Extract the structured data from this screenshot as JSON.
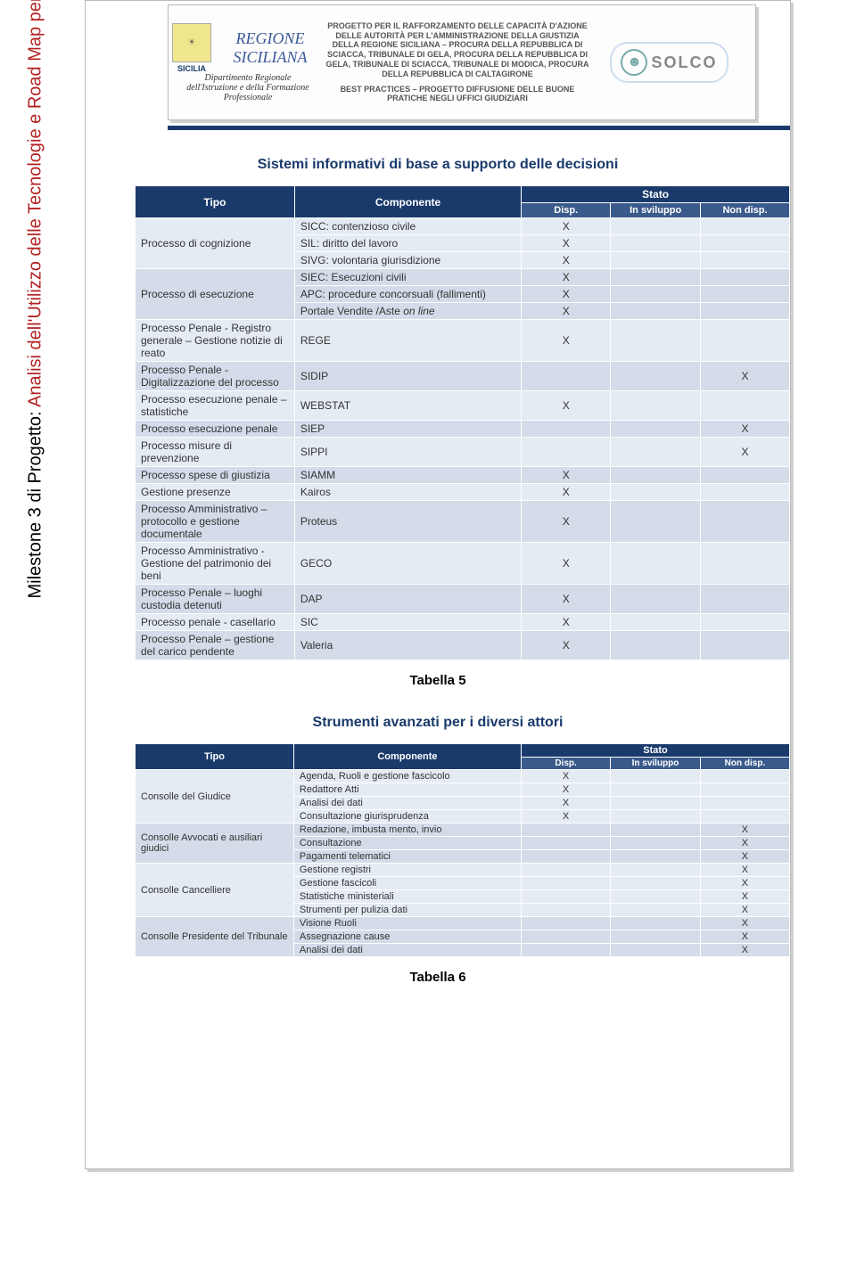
{
  "sidebar": {
    "black": "Milestone 3 di Progetto: ",
    "red": "Analisi dell'Utilizzo delle Tecnologie e Road Map per l'innovazione tecnologica"
  },
  "header": {
    "regione": "REGIONE SICILIANA",
    "sicilia": "SICILIA",
    "dept1": "Dipartimento Regionale",
    "dept2": "dell'Istruzione e della Formazione",
    "dept3": "Professionale",
    "center1": "PROGETTO PER IL RAFFORZAMENTO DELLE CAPACITÀ D'AZIONE DELLE AUTORITÀ PER L'AMMINISTRAZIONE DELLA GIUSTIZIA DELLA REGIONE SICILIANA – PROCURA DELLA REPUBBLICA DI SCIACCA, TRIBUNALE DI GELA, PROCURA DELLA REPUBBLICA DI GELA, TRIBUNALE DI SCIACCA, TRIBUNALE DI MODICA, PROCURA DELLA REPUBBLICA DI CALTAGIRONE",
    "center2": "BEST PRACTICES – PROGETTO DIFFUSIONE DELLE BUONE PRATICHE NEGLI UFFICI GIUDIZIARI",
    "solco": "SOLCO"
  },
  "titles": {
    "t1": "Sistemi informativi di base a supporto delle decisioni",
    "cap5": "Tabella 5",
    "t2": "Strumenti avanzati per i diversi attori",
    "cap6": "Tabella 6"
  },
  "headers": {
    "tipo": "Tipo",
    "componente": "Componente",
    "stato": "Stato",
    "disp": "Disp.",
    "svil": "In sviluppo",
    "nondisp": "Non disp."
  },
  "table1": {
    "colors": {
      "a": "#e4ebf3",
      "b": "#d3dce8"
    },
    "groups": [
      {
        "tipo": "Processo di cognizione",
        "shade": "a",
        "rows": [
          {
            "comp": "SICC: contenzioso civile",
            "disp": "X",
            "svil": "",
            "nd": ""
          },
          {
            "comp": "SIL: diritto del lavoro",
            "disp": "X",
            "svil": "",
            "nd": ""
          },
          {
            "comp": "SIVG: volontaria giurisdizione",
            "disp": "X",
            "svil": "",
            "nd": ""
          }
        ]
      },
      {
        "tipo": "Processo di esecuzione",
        "shade": "b",
        "rows": [
          {
            "comp": "SIEC: Esecuzioni civili",
            "disp": "X",
            "svil": "",
            "nd": ""
          },
          {
            "comp": "APC: procedure concorsuali (fallimenti)",
            "disp": "X",
            "svil": "",
            "nd": ""
          },
          {
            "comp_html": "Portale Vendite /Aste <i>on line</i>",
            "disp": "X",
            "svil": "",
            "nd": ""
          }
        ]
      },
      {
        "tipo": "Processo Penale - Registro generale – Gestione notizie di reato",
        "shade": "a",
        "rows": [
          {
            "comp": "REGE",
            "disp": "X",
            "svil": "",
            "nd": ""
          }
        ]
      },
      {
        "tipo": "Processo Penale - Digitalizzazione del processo",
        "shade": "b",
        "rows": [
          {
            "comp": "SIDIP",
            "disp": "",
            "svil": "",
            "nd": "X"
          }
        ]
      },
      {
        "tipo": "Processo esecuzione penale – statistiche",
        "shade": "a",
        "rows": [
          {
            "comp": "WEBSTAT",
            "disp": "X",
            "svil": "",
            "nd": ""
          }
        ]
      },
      {
        "tipo": "Processo esecuzione penale",
        "shade": "b",
        "rows": [
          {
            "comp": "SIEP",
            "disp": "",
            "svil": "",
            "nd": "X"
          }
        ]
      },
      {
        "tipo": "Processo misure di prevenzione",
        "shade": "a",
        "rows": [
          {
            "comp": "SIPPI",
            "disp": "",
            "svil": "",
            "nd": "X"
          }
        ]
      },
      {
        "tipo": "Processo spese di giustizia",
        "shade": "b",
        "rows": [
          {
            "comp": "SIAMM",
            "disp": "X",
            "svil": "",
            "nd": ""
          }
        ]
      },
      {
        "tipo": "Gestione presenze",
        "shade": "a",
        "rows": [
          {
            "comp": "Kairos",
            "disp": "X",
            "svil": "",
            "nd": ""
          }
        ]
      },
      {
        "tipo": "Processo Amministrativo – protocollo e gestione documentale",
        "shade": "b",
        "rows": [
          {
            "comp": "Proteus",
            "disp": "X",
            "svil": "",
            "nd": ""
          }
        ]
      },
      {
        "tipo": "Processo Amministrativo -  Gestione del patrimonio dei beni",
        "shade": "a",
        "rows": [
          {
            "comp": "GECO",
            "disp": "X",
            "svil": "",
            "nd": ""
          }
        ]
      },
      {
        "tipo": "Processo Penale – luoghi custodia detenuti",
        "shade": "b",
        "rows": [
          {
            "comp": "DAP",
            "disp": "X",
            "svil": "",
            "nd": ""
          }
        ]
      },
      {
        "tipo": "Processo penale - casellario",
        "shade": "a",
        "rows": [
          {
            "comp": "SIC",
            "disp": "X",
            "svil": "",
            "nd": ""
          }
        ]
      },
      {
        "tipo": "Processo Penale – gestione del carico pendente",
        "shade": "b",
        "rows": [
          {
            "comp": "Valeria",
            "disp": "X",
            "svil": "",
            "nd": ""
          }
        ]
      }
    ]
  },
  "table2": {
    "groups": [
      {
        "tipo": "Consolle del Giudice",
        "shade": "a",
        "rows": [
          {
            "comp": "Agenda, Ruoli e gestione fascicolo",
            "disp": "X",
            "svil": "",
            "nd": ""
          },
          {
            "comp": "Redattore Atti",
            "disp": "X",
            "svil": "",
            "nd": ""
          },
          {
            "comp": "Analisi dei dati",
            "disp": "X",
            "svil": "",
            "nd": ""
          },
          {
            "comp": "Consultazione giurisprudenza",
            "disp": "X",
            "svil": "",
            "nd": ""
          }
        ]
      },
      {
        "tipo": "Consolle Avvocati e ausiliari giudici",
        "shade": "b",
        "rows": [
          {
            "comp": "Redazione, imbusta mento, invio",
            "disp": "",
            "svil": "",
            "nd": "X"
          },
          {
            "comp": "Consultazione",
            "disp": "",
            "svil": "",
            "nd": "X"
          },
          {
            "comp": "Pagamenti telematici",
            "disp": "",
            "svil": "",
            "nd": "X"
          }
        ]
      },
      {
        "tipo": "Consolle Cancelliere",
        "shade": "a",
        "rows": [
          {
            "comp": "Gestione registri",
            "disp": "",
            "svil": "",
            "nd": "X"
          },
          {
            "comp": "Gestione fascicoli",
            "disp": "",
            "svil": "",
            "nd": "X"
          },
          {
            "comp": "Statistiche ministeriali",
            "disp": "",
            "svil": "",
            "nd": "X"
          },
          {
            "comp": "Strumenti per pulizia dati",
            "disp": "",
            "svil": "",
            "nd": "X"
          }
        ]
      },
      {
        "tipo": "Consolle Presidente del Tribunale",
        "shade": "b",
        "rows": [
          {
            "comp": "Visione Ruoli",
            "disp": "",
            "svil": "",
            "nd": "X"
          },
          {
            "comp": "Assegnazione cause",
            "disp": "",
            "svil": "",
            "nd": "X"
          },
          {
            "comp": "Analisi dei dati",
            "disp": "",
            "svil": "",
            "nd": "X"
          }
        ]
      }
    ]
  }
}
